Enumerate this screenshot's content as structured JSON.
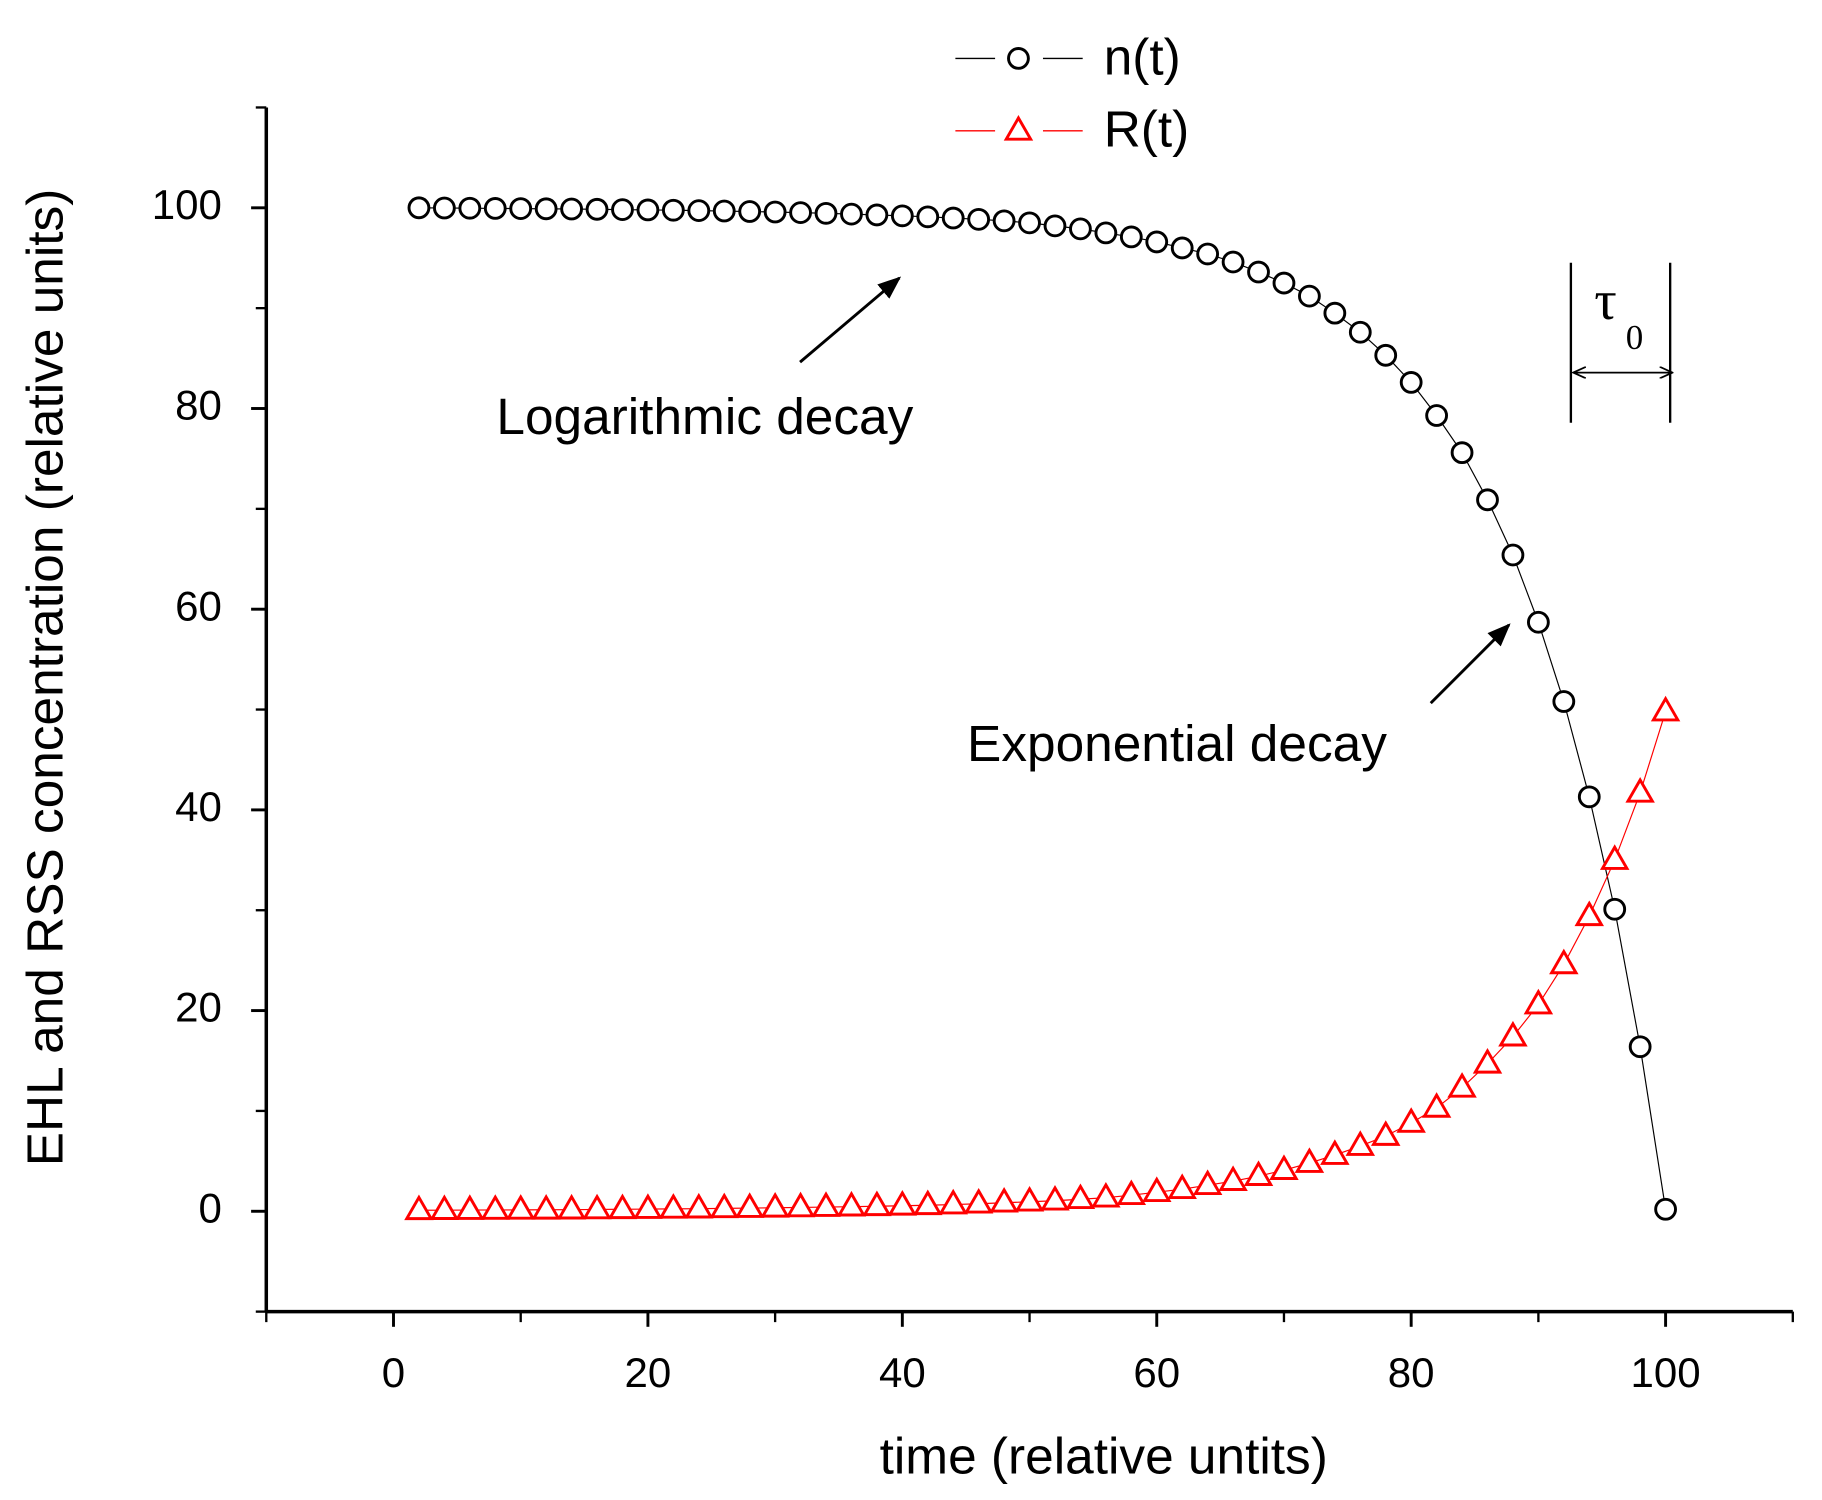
{
  "chart_data": {
    "type": "scatter",
    "xlabel": "time (relative untits)",
    "ylabel": "EHL and RSS concentration (relative units)",
    "x": [
      2,
      4,
      6,
      8,
      10,
      12,
      14,
      16,
      18,
      20,
      22,
      24,
      26,
      28,
      30,
      32,
      34,
      36,
      38,
      40,
      42,
      44,
      46,
      48,
      50,
      52,
      54,
      56,
      58,
      60,
      62,
      64,
      66,
      68,
      70,
      72,
      74,
      76,
      78,
      80,
      82,
      84,
      86,
      88,
      90,
      92,
      94,
      96,
      98,
      100
    ],
    "series": [
      {
        "name": "n(t)",
        "color": "#000000",
        "marker": "circle",
        "values": [
          100,
          99.98,
          99.96,
          99.94,
          99.92,
          99.9,
          99.88,
          99.85,
          99.82,
          99.79,
          99.76,
          99.72,
          99.68,
          99.63,
          99.58,
          99.52,
          99.45,
          99.37,
          99.29,
          99.2,
          99.1,
          98.98,
          98.85,
          98.7,
          98.5,
          98.2,
          97.9,
          97.5,
          97.1,
          96.6,
          96.0,
          95.4,
          94.6,
          93.6,
          92.5,
          91.2,
          89.5,
          87.6,
          85.3,
          82.6,
          79.3,
          75.6,
          70.9,
          65.4,
          58.7,
          50.8,
          41.3,
          30.1,
          16.4,
          0.2
        ]
      },
      {
        "name": "R(t)",
        "color": "#ff0000",
        "marker": "triangle",
        "values": [
          0.1,
          0.11,
          0.12,
          0.13,
          0.14,
          0.15,
          0.16,
          0.18,
          0.2,
          0.22,
          0.24,
          0.26,
          0.29,
          0.32,
          0.35,
          0.38,
          0.42,
          0.46,
          0.5,
          0.55,
          0.6,
          0.67,
          0.75,
          0.85,
          0.95,
          1.05,
          1.2,
          1.35,
          1.6,
          1.9,
          2.2,
          2.6,
          3.0,
          3.5,
          4.1,
          4.8,
          5.6,
          6.5,
          7.5,
          8.8,
          10.3,
          12.3,
          14.7,
          17.4,
          20.6,
          24.6,
          29.4,
          35.0,
          41.7,
          49.8
        ]
      }
    ],
    "xlim": [
      -10,
      110
    ],
    "xticks": [
      0,
      20,
      40,
      60,
      80,
      100
    ],
    "xminorticks": [
      -10,
      10,
      30,
      50,
      70,
      90,
      110
    ],
    "ylim": [
      -10,
      110
    ],
    "yticks": [
      0,
      20,
      40,
      60,
      80,
      100
    ],
    "yminorticks": [
      -10,
      10,
      30,
      50,
      70,
      90,
      110
    ],
    "legend": "top",
    "annotations": [
      "Logarithmic decay",
      "Exponential decay"
    ],
    "tau_label": "τ",
    "tau_subscript": "0"
  }
}
